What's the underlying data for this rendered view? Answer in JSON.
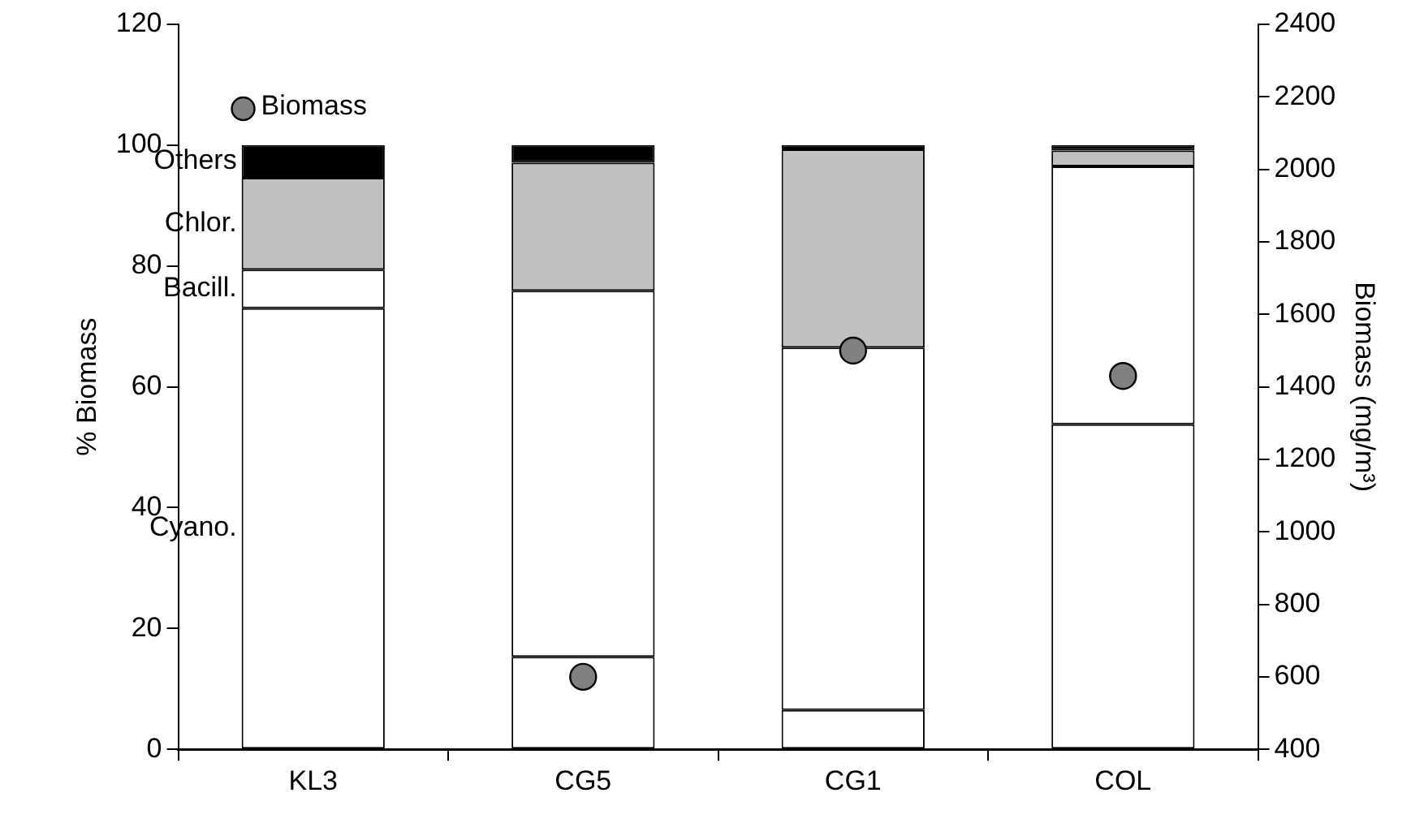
{
  "chart_data": {
    "type": "bar",
    "stacked": true,
    "ylabel": "% Biomass",
    "y2label": "Biomass (mg/m³)",
    "categories": [
      "KL3",
      "CG5",
      "CG1",
      "COL"
    ],
    "series": [
      {
        "name": "Cyano.",
        "color": "#ffffff",
        "values": [
          73,
          15.3,
          6.5,
          53.8
        ]
      },
      {
        "name": "Bacill.",
        "color": "#ffffff",
        "values": [
          6.4,
          60.6,
          60,
          42.7
        ]
      },
      {
        "name": "Chlor.",
        "color": "#c0c0c0",
        "values": [
          15.2,
          21.2,
          32.8,
          2.6
        ]
      },
      {
        "name": "Others",
        "color": "#000000",
        "values": [
          5.4,
          2.9,
          0.7,
          0.9
        ]
      },
      {
        "name": "Biomass",
        "type": "scatter",
        "axis": "y2",
        "color": "#808080",
        "values": [
          null,
          600,
          1500,
          1430
        ]
      }
    ],
    "ylim": [
      0,
      120
    ],
    "yticks": [
      0,
      20,
      40,
      60,
      80,
      100,
      120
    ],
    "y2lim": [
      400,
      2400
    ],
    "y2ticks": [
      400,
      600,
      800,
      1000,
      1200,
      1400,
      1600,
      1800,
      2000,
      2200,
      2400
    ],
    "legend": "top left",
    "marker": "circle"
  }
}
